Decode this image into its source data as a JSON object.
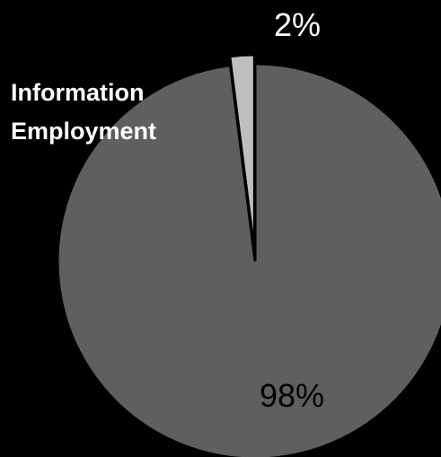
{
  "chart_data": {
    "type": "pie",
    "title_lines": [
      "Information",
      "Employment"
    ],
    "slices": [
      {
        "value": 2,
        "label": "2%",
        "color": "#bfbfbf"
      },
      {
        "value": 98,
        "label": "98%",
        "color": "#5f5f5f"
      }
    ],
    "start_angle_deg": 0,
    "direction": "counterclockwise",
    "exploded_slice_index": 0
  }
}
